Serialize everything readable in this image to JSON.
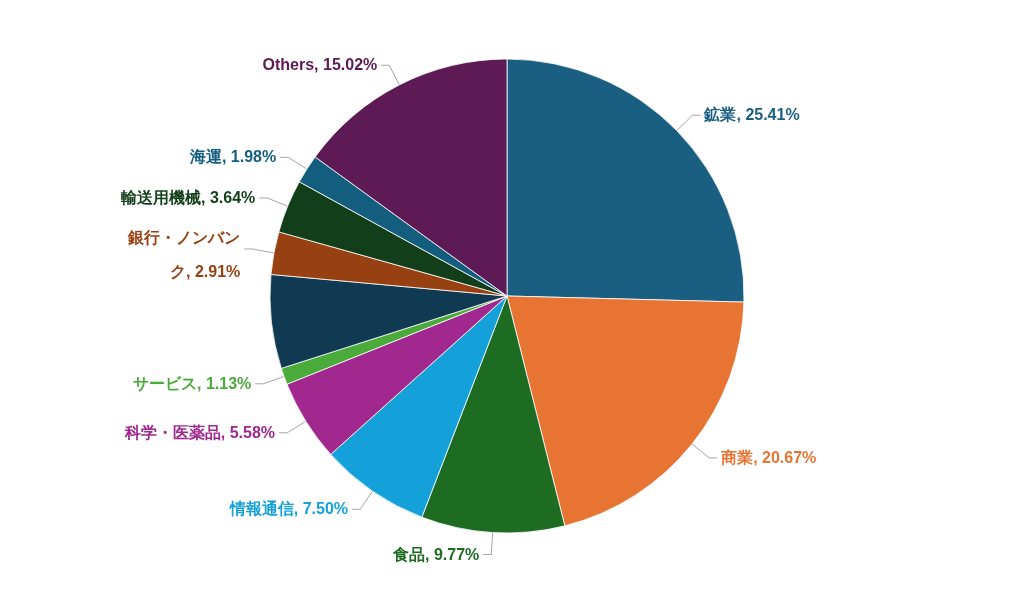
{
  "chart_data": {
    "type": "pie",
    "categories": [
      "鉱業",
      "商業",
      "食品",
      "情報通信",
      "科学・医薬品",
      "サービス",
      null,
      "銀行・ノンバンク",
      "輸送用機械",
      "海運",
      "Others"
    ],
    "values": [
      25.41,
      20.67,
      9.77,
      7.5,
      5.58,
      1.13,
      6.39,
      2.91,
      3.64,
      1.98,
      15.02
    ],
    "value_labels": [
      "25.41%",
      "20.67%",
      "9.77%",
      "7.50%",
      "5.58%",
      "1.13%",
      null,
      "2.91%",
      "3.64%",
      "1.98%",
      "15.02%"
    ],
    "colors": [
      "#1a5f82",
      "#e87433",
      "#1e6b22",
      "#14a0d8",
      "#a0288f",
      "#4aaa3a",
      "#0f3a52",
      "#974012",
      "#123f1a",
      "#135e7f",
      "#5e1a55"
    ]
  }
}
